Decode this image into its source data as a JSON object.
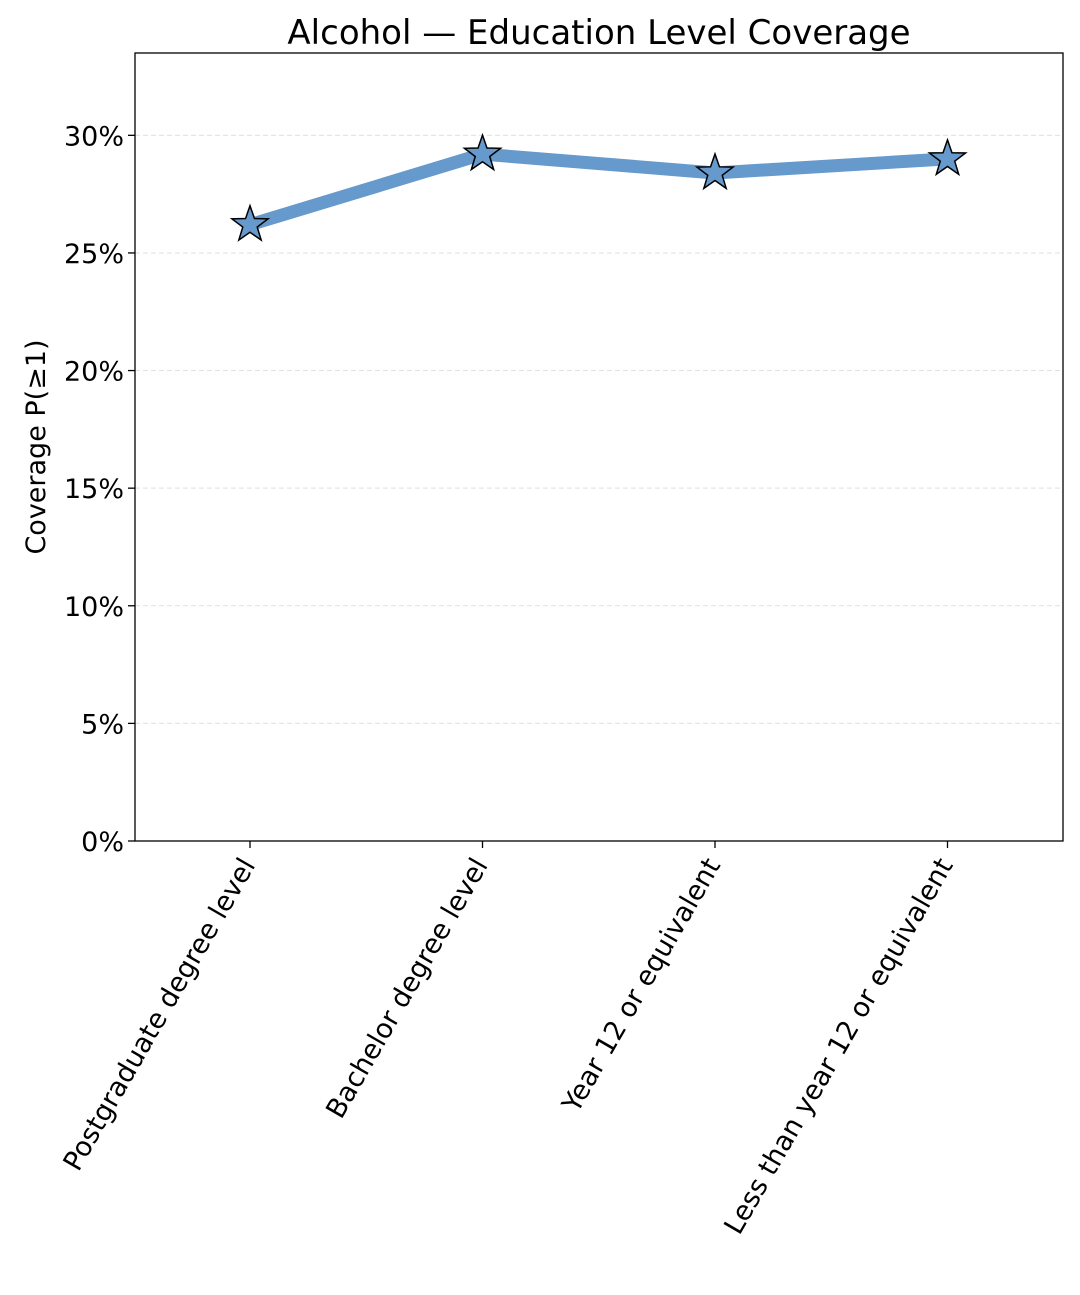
{
  "chart_data": {
    "type": "line",
    "title": "Alcohol — Education Level Coverage",
    "xlabel": "",
    "ylabel": "Coverage P(≥1)",
    "categories": [
      "Postgraduate degree level",
      "Bachelor degree level",
      "Year 12 or equivalent",
      "Less than year 12 or equivalent"
    ],
    "series": [
      {
        "values": [
          26.2,
          29.2,
          28.4,
          29.0
        ]
      }
    ],
    "ylim": [
      0,
      33.5
    ],
    "yticks": [
      0,
      5,
      10,
      15,
      20,
      25,
      30
    ],
    "ytick_labels": [
      "0%",
      "5%",
      "10%",
      "15%",
      "20%",
      "25%",
      "30%"
    ],
    "grid": "y-dashed",
    "line_color": "#6699cc",
    "marker": "star",
    "marker_color": "#6699cc",
    "marker_edge_color": "#000000"
  }
}
